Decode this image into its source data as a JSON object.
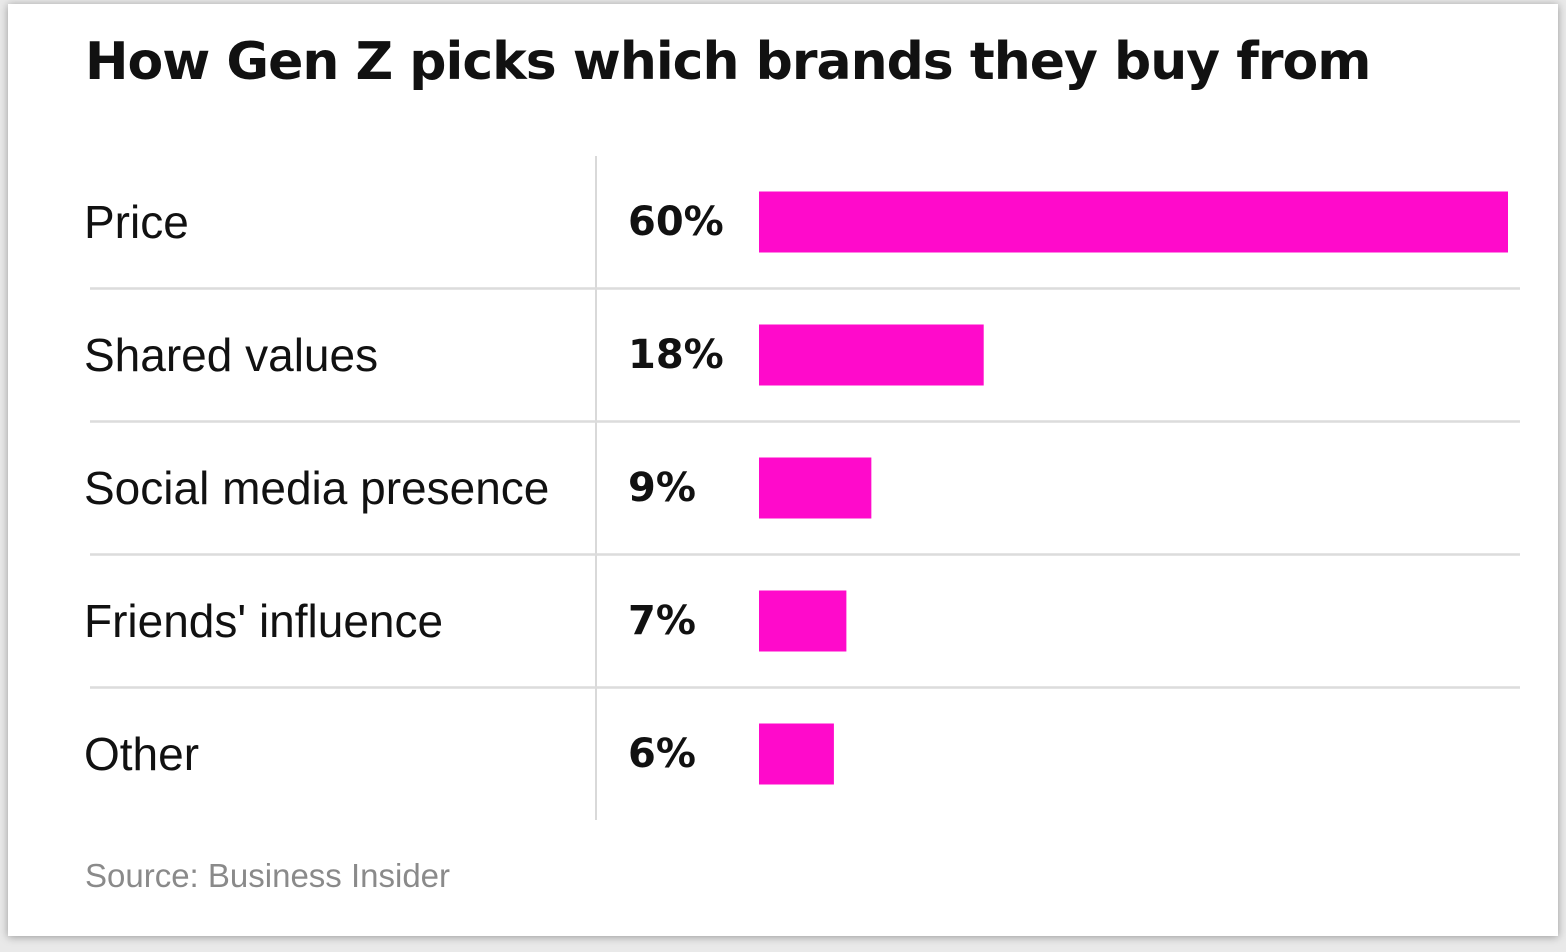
{
  "chart_data": {
    "type": "bar",
    "orientation": "horizontal",
    "title": "How Gen Z picks which brands they buy from",
    "categories": [
      "Price",
      "Shared values",
      "Social media presence",
      "Friends' influence",
      "Other"
    ],
    "values": [
      60,
      18,
      9,
      7,
      6
    ],
    "value_labels": [
      "60%",
      "18%",
      "9%",
      "7%",
      "6%"
    ],
    "unit": "%",
    "xlim": [
      0,
      60
    ],
    "bar_color": "#ff0acb",
    "source": "Source: Business Insider"
  }
}
